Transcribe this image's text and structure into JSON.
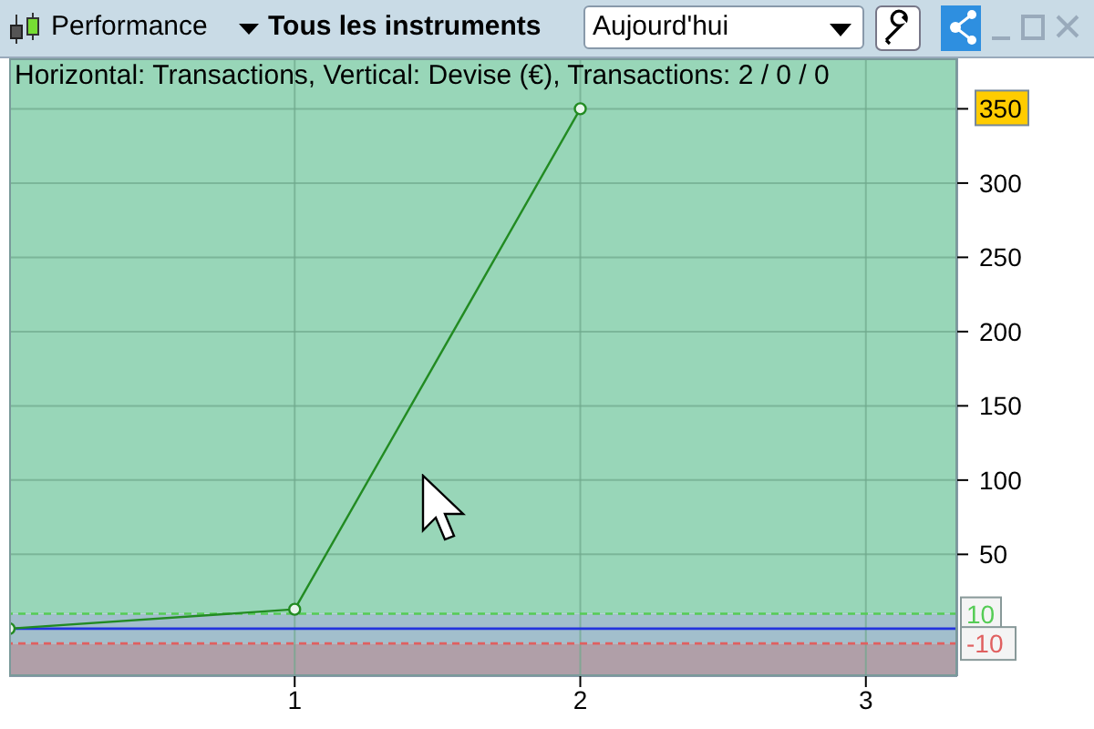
{
  "chart_data": {
    "type": "line",
    "title": "Horizontal: Transactions, Vertical: Devise (€), Transactions: 2 / 0 / 0",
    "x": [
      0,
      1,
      2
    ],
    "series": [
      {
        "color": "#228b22",
        "values": [
          0,
          13,
          350
        ]
      }
    ],
    "xlim": [
      0,
      3.32
    ],
    "xticks": [
      1,
      2,
      3
    ],
    "ylim": [
      -32,
      384
    ],
    "yticks": [
      50,
      100,
      150,
      200,
      250,
      300,
      350
    ],
    "grid": true,
    "marker": "circle",
    "line_style": "solid",
    "bands": [
      {
        "axis": "y",
        "from": 10,
        "to": 384,
        "color": "#98d6b8"
      },
      {
        "axis": "y",
        "from": -10,
        "to": 10,
        "color": "#a2bfcc"
      },
      {
        "axis": "y",
        "from": -32,
        "to": -10,
        "color": "#b09fa8"
      }
    ],
    "ref_lines": [
      {
        "axis": "y",
        "value": 10,
        "label": "10",
        "color": "#55cc55",
        "line_style": "dashed"
      },
      {
        "axis": "y",
        "value": -10,
        "label": "-10",
        "color": "#e06060",
        "line_style": "dashed"
      },
      {
        "axis": "y",
        "value": 0,
        "color": "#2233dd",
        "line_style": "solid"
      }
    ],
    "annotations": [
      "Performance",
      "Tous les instruments",
      "Aujourd'hui"
    ]
  }
}
